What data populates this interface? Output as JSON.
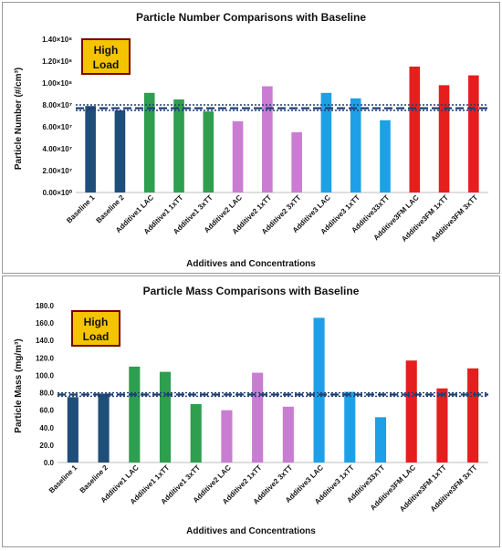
{
  "chart_data": [
    {
      "type": "bar",
      "title": "Particle Number Comparisons with Baseline",
      "xlabel": "Additives and Concentrations",
      "ylabel": "Particle Number (#/cm³)",
      "badge": [
        "High",
        "Load"
      ],
      "ylim": [
        0,
        140000000
      ],
      "yticks": [
        0,
        20000000,
        40000000,
        60000000,
        80000000,
        100000000,
        120000000,
        140000000
      ],
      "ytick_labels": [
        "0.00×10⁰",
        "2.00×10⁷",
        "4.00×10⁷",
        "6.00×10⁷",
        "8.00×10⁷",
        "1.00×10⁸",
        "1.20×10⁸",
        "1.40×10⁸"
      ],
      "categories": [
        "Baseline 1",
        "Baseline 2",
        "Additive1 LAC",
        "Additive1 1xTT",
        "Additive1 3xTT",
        "Additive2 LAC",
        "Additive2 1xTT",
        "Additive2 3xTT",
        "Additive3 LAC",
        "Additive3 1xTT",
        "Additive33xTT",
        "Additive3FM LAC",
        "Additive3FM 1xTT",
        "Additive3FM 3xTT"
      ],
      "values": [
        79000000,
        75000000,
        91000000,
        85000000,
        74000000,
        65000000,
        97000000,
        55000000,
        91000000,
        86000000,
        66000000,
        115000000,
        98000000,
        107000000
      ],
      "reference_lines": [
        80000000,
        77000000,
        75000000
      ],
      "colors": [
        "#1f4e79",
        "#1f4e79",
        "#2e9e4f",
        "#2e9e4f",
        "#2e9e4f",
        "#c97dd2",
        "#c97dd2",
        "#c97dd2",
        "#1ea0e8",
        "#1ea0e8",
        "#1ea0e8",
        "#e61e1e",
        "#e61e1e",
        "#e61e1e"
      ],
      "grid": false
    },
    {
      "type": "bar",
      "title": "Particle Mass Comparisons with Baseline",
      "xlabel": "Additives and Concentrations",
      "ylabel": "Particle Mass (mg/m³)",
      "badge": [
        "High",
        "Load"
      ],
      "ylim": [
        0,
        180
      ],
      "yticks": [
        0,
        20,
        40,
        60,
        80,
        100,
        120,
        140,
        160,
        180
      ],
      "ytick_labels": [
        "0.0",
        "20.0",
        "40.0",
        "60.0",
        "80.0",
        "100.0",
        "120.0",
        "140.0",
        "160.0",
        "180.0"
      ],
      "categories": [
        "Baseline 1",
        "Baseline 2",
        "Additive1 LAC",
        "Additive1 1xTT",
        "Additive1 3xTT",
        "Additive2 LAC",
        "Additive2 1xTT",
        "Additive2 3xTT",
        "Additive3 LAC",
        "Additive3 1xTT",
        "Additive33xTT",
        "Additive3FM LAC",
        "Additive3FM 1xTT",
        "Additive3FM 3xTT"
      ],
      "values": [
        75,
        79,
        110,
        104,
        67,
        60,
        103,
        64,
        166,
        81,
        52,
        117,
        85,
        108
      ],
      "reference_lines": [
        80,
        78,
        76
      ],
      "colors": [
        "#1f4e79",
        "#1f4e79",
        "#2e9e4f",
        "#2e9e4f",
        "#2e9e4f",
        "#c97dd2",
        "#c97dd2",
        "#c97dd2",
        "#1ea0e8",
        "#1ea0e8",
        "#1ea0e8",
        "#e61e1e",
        "#e61e1e",
        "#e61e1e"
      ],
      "grid": false
    }
  ]
}
